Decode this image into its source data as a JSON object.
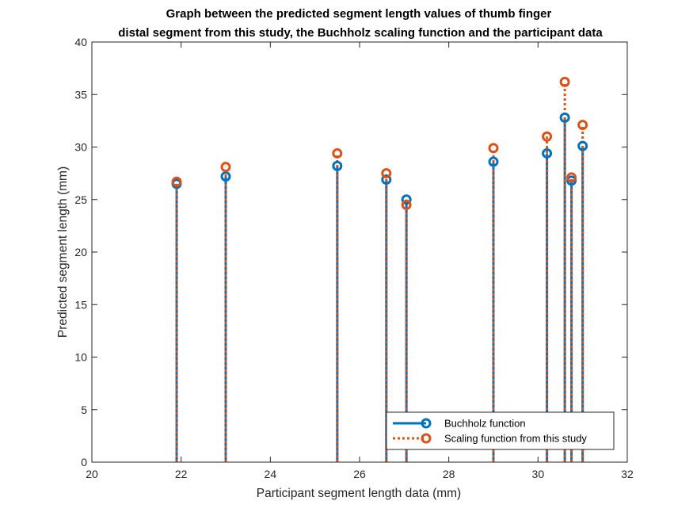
{
  "chart_data": {
    "type": "stem",
    "title": [
      "Graph between the predicted segment length values of thumb finger",
      "distal segment from this study, the Buchholz scaling function and the participant data"
    ],
    "xlabel": "Participant segment length data (mm)",
    "ylabel": "Predicted segment length (mm)",
    "xlim": [
      20,
      32
    ],
    "ylim": [
      0,
      40
    ],
    "xticks": [
      20,
      22,
      24,
      26,
      28,
      30,
      32
    ],
    "yticks": [
      0,
      5,
      10,
      15,
      20,
      25,
      30,
      35,
      40
    ],
    "grid": false,
    "legend_position": "bottom-right",
    "series": [
      {
        "name": "Buchholz function",
        "color": "#0072BD",
        "line_style": "solid",
        "marker": "circle",
        "x": [
          21.9,
          23.0,
          25.5,
          26.6,
          27.05,
          29.0,
          30.2,
          30.6,
          30.75,
          31.0
        ],
        "y": [
          26.5,
          27.2,
          28.2,
          26.9,
          25.0,
          28.6,
          29.4,
          32.8,
          26.8,
          30.1
        ]
      },
      {
        "name": "Scaling function from this study",
        "color": "#D95319",
        "line_style": "dotted",
        "marker": "circle",
        "x": [
          21.9,
          23.0,
          25.5,
          26.6,
          27.05,
          29.0,
          30.2,
          30.6,
          30.75,
          31.0
        ],
        "y": [
          26.7,
          28.1,
          29.4,
          27.5,
          24.5,
          29.9,
          31.0,
          36.2,
          27.1,
          32.1
        ]
      }
    ]
  }
}
